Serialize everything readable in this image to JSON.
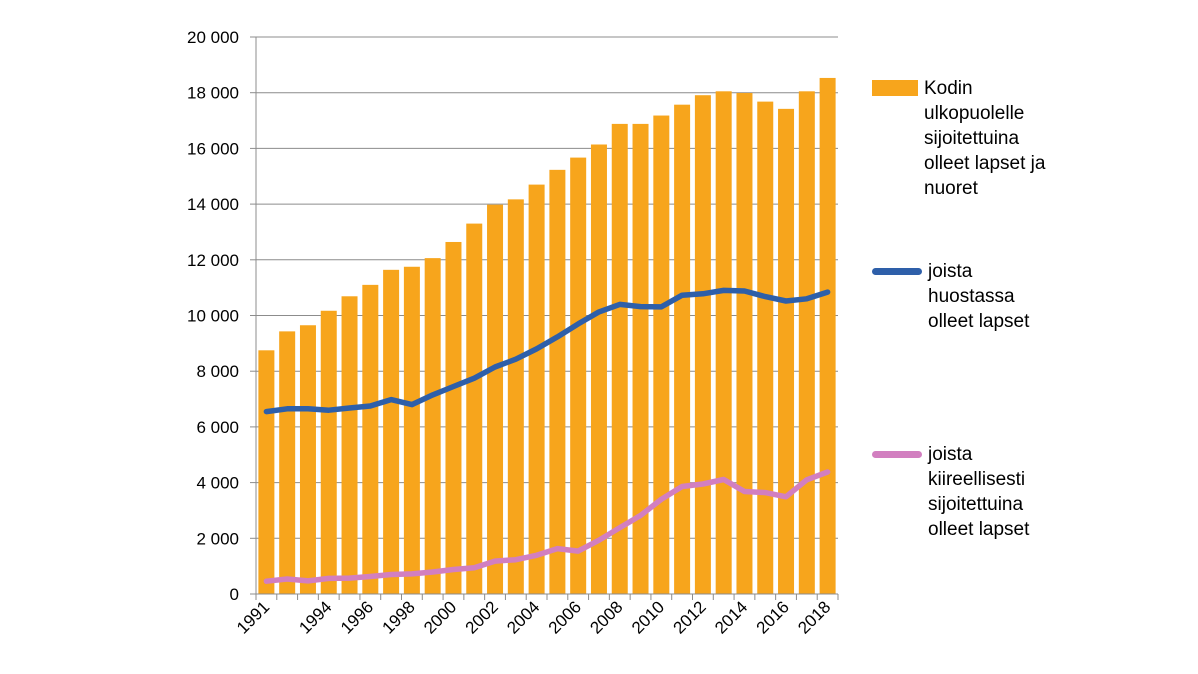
{
  "chart_data": {
    "type": "bar",
    "title": "",
    "xlabel": "",
    "ylabel": "",
    "ylim": [
      0,
      20000
    ],
    "y_ticks": [
      0,
      2000,
      4000,
      6000,
      8000,
      10000,
      12000,
      14000,
      16000,
      18000,
      20000
    ],
    "y_tick_labels": [
      "0",
      "2 000",
      "4 000",
      "6 000",
      "8 000",
      "10 000",
      "12 000",
      "14 000",
      "16 000",
      "18 000",
      "20 000"
    ],
    "categories": [
      "1991",
      "1992",
      "1993",
      "1994",
      "1995",
      "1996",
      "1997",
      "1998",
      "1999",
      "2000",
      "2001",
      "2002",
      "2003",
      "2004",
      "2005",
      "2006",
      "2007",
      "2008",
      "2009",
      "2010",
      "2011",
      "2012",
      "2013",
      "2014",
      "2015",
      "2016",
      "2017",
      "2018"
    ],
    "x_tick_labels": [
      "1991",
      "",
      "",
      "1994",
      "",
      "1996",
      "",
      "1998",
      "",
      "2000",
      "",
      "2002",
      "",
      "2004",
      "",
      "2006",
      "",
      "2008",
      "",
      "2010",
      "",
      "2012",
      "",
      "2014",
      "",
      "2016",
      "",
      "2018"
    ],
    "series": [
      {
        "name": "Kodin ulkopuolelle sijoitettuina olleet lapset ja nuoret",
        "kind": "bar",
        "color": "#F7A51C",
        "values": [
          8750,
          9430,
          9650,
          10170,
          10690,
          11100,
          11640,
          11750,
          12060,
          12640,
          13300,
          13980,
          14170,
          14700,
          15230,
          15670,
          16140,
          16880,
          16880,
          17180,
          17570,
          17910,
          18050,
          17990,
          17680,
          17420,
          18050,
          18530
        ]
      },
      {
        "name": "joista huostassa olleet lapset",
        "kind": "line",
        "color": "#2E5FA9",
        "values": [
          6550,
          6650,
          6650,
          6600,
          6680,
          6750,
          6980,
          6800,
          7150,
          7450,
          7750,
          8150,
          8430,
          8800,
          9230,
          9700,
          10130,
          10400,
          10320,
          10310,
          10730,
          10780,
          10900,
          10880,
          10680,
          10520,
          10600,
          10840
        ]
      },
      {
        "name": "joista kiireellisesti sijoitettuina olleet lapset",
        "kind": "line",
        "color": "#D27FC0",
        "values": [
          460,
          540,
          470,
          560,
          570,
          630,
          700,
          720,
          790,
          880,
          940,
          1180,
          1230,
          1390,
          1630,
          1540,
          1930,
          2380,
          2820,
          3400,
          3860,
          3950,
          4110,
          3680,
          3640,
          3490,
          4100,
          4380
        ]
      }
    ],
    "legend_position": "right"
  }
}
